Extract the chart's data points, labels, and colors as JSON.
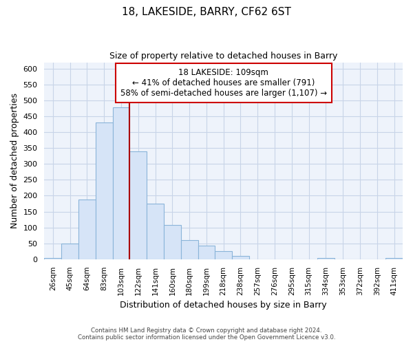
{
  "title": "18, LAKESIDE, BARRY, CF62 6ST",
  "subtitle": "Size of property relative to detached houses in Barry",
  "xlabel": "Distribution of detached houses by size in Barry",
  "ylabel": "Number of detached properties",
  "bin_labels": [
    "26sqm",
    "45sqm",
    "64sqm",
    "83sqm",
    "103sqm",
    "122sqm",
    "141sqm",
    "160sqm",
    "180sqm",
    "199sqm",
    "218sqm",
    "238sqm",
    "257sqm",
    "276sqm",
    "295sqm",
    "315sqm",
    "334sqm",
    "353sqm",
    "372sqm",
    "392sqm",
    "411sqm"
  ],
  "bar_heights": [
    5,
    50,
    188,
    430,
    478,
    340,
    175,
    108,
    60,
    44,
    25,
    10,
    0,
    0,
    0,
    0,
    5,
    0,
    0,
    0,
    5
  ],
  "bar_color": "#d6e4f7",
  "bar_edge_color": "#8ab4d9",
  "highlight_line_index": 4,
  "highlight_line_color": "#aa0000",
  "ylim": [
    0,
    620
  ],
  "yticks": [
    0,
    50,
    100,
    150,
    200,
    250,
    300,
    350,
    400,
    450,
    500,
    550,
    600
  ],
  "annotation_text_line1": "18 LAKESIDE: 109sqm",
  "annotation_text_line2": "← 41% of detached houses are smaller (791)",
  "annotation_text_line3": "58% of semi-detached houses are larger (1,107) →",
  "annotation_box_color": "#cc0000",
  "footnote_line1": "Contains HM Land Registry data © Crown copyright and database right 2024.",
  "footnote_line2": "Contains public sector information licensed under the Open Government Licence v3.0.",
  "plot_bg_color": "#eef3fb",
  "fig_bg_color": "#ffffff",
  "grid_color": "#c8d4e8"
}
